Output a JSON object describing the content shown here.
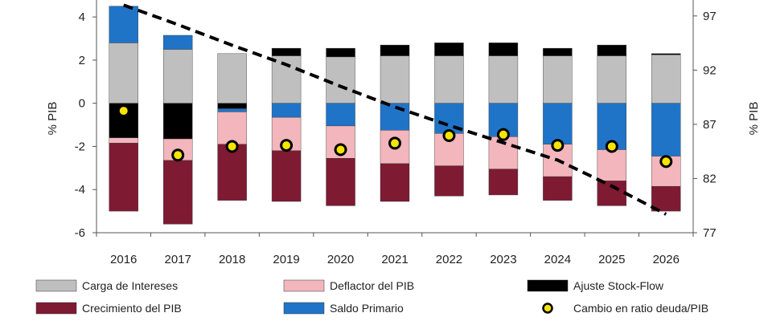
{
  "chart_data": {
    "type": "bar",
    "stacked": true,
    "categories": [
      "2016",
      "2017",
      "2018",
      "2019",
      "2020",
      "2021",
      "2022",
      "2023",
      "2024",
      "2025",
      "2026"
    ],
    "ylabel_left": "% PIB",
    "ylabel_right": "% PIB",
    "y_left": {
      "ticks": [
        4,
        2,
        0,
        -2,
        -4,
        -6
      ],
      "range": [
        -6,
        4.6
      ]
    },
    "y_right": {
      "ticks": [
        97,
        92,
        87,
        82,
        77
      ],
      "range": [
        77,
        98.1
      ]
    },
    "colors": {
      "carga": "#bfbfbf",
      "deflactor": "#f2b6bc",
      "ajuste": "#000000",
      "crecimiento": "#7f1a33",
      "saldo": "#1f74c8",
      "dot": "#f5e400"
    },
    "series": [
      {
        "key": "carga",
        "name": "Carga de Intereses",
        "values": [
          2.8,
          2.5,
          2.3,
          2.2,
          2.15,
          2.2,
          2.2,
          2.2,
          2.2,
          2.2,
          2.25
        ]
      },
      {
        "key": "ajuste",
        "name": "Ajuste Stock-Flow",
        "values": [
          -1.6,
          -1.65,
          -0.25,
          0.35,
          0.4,
          0.5,
          0.6,
          0.6,
          0.35,
          0.5,
          0.05
        ]
      },
      {
        "key": "saldo",
        "name": "Saldo Primario",
        "values": [
          1.7,
          0.65,
          -0.15,
          -0.65,
          -1.05,
          -1.25,
          -1.4,
          -1.55,
          -1.9,
          -2.15,
          -2.45
        ]
      },
      {
        "key": "deflactor",
        "name": "Deflactor del PIB",
        "values": [
          -0.25,
          -1.0,
          -1.5,
          -1.55,
          -1.5,
          -1.55,
          -1.5,
          -1.5,
          -1.5,
          -1.45,
          -1.4
        ]
      },
      {
        "key": "crecimiento",
        "name": "Crecimiento del PIB",
        "values": [
          -3.15,
          -2.95,
          -2.6,
          -2.35,
          -2.2,
          -1.75,
          -1.4,
          -1.2,
          -1.1,
          -1.15,
          -1.15
        ]
      }
    ],
    "cambio": {
      "name": "Cambio en ratio deuda/PIB",
      "values": [
        -0.35,
        -2.4,
        -2.0,
        -1.95,
        -2.15,
        -1.85,
        -1.5,
        -1.45,
        -1.95,
        -2.0,
        -2.7
      ]
    },
    "debt_line": {
      "axis": "right",
      "values": [
        98.0,
        96.2,
        94.3,
        92.5,
        90.5,
        88.6,
        86.9,
        85.3,
        83.7,
        81.3,
        78.7
      ]
    },
    "legend": {
      "placement": "bottom",
      "items": [
        {
          "key": "carga",
          "label": "Carga de Intereses",
          "kind": "box"
        },
        {
          "key": "deflactor",
          "label": "Deflactor del PIB",
          "kind": "box"
        },
        {
          "key": "ajuste",
          "label": "Ajuste Stock-Flow",
          "kind": "box"
        },
        {
          "key": "crecimiento",
          "label": "Crecimiento del PIB",
          "kind": "box"
        },
        {
          "key": "saldo",
          "label": "Saldo Primario",
          "kind": "box"
        },
        {
          "key": "cambio",
          "label": "Cambio en ratio deuda/PIB",
          "kind": "dot"
        }
      ]
    }
  }
}
